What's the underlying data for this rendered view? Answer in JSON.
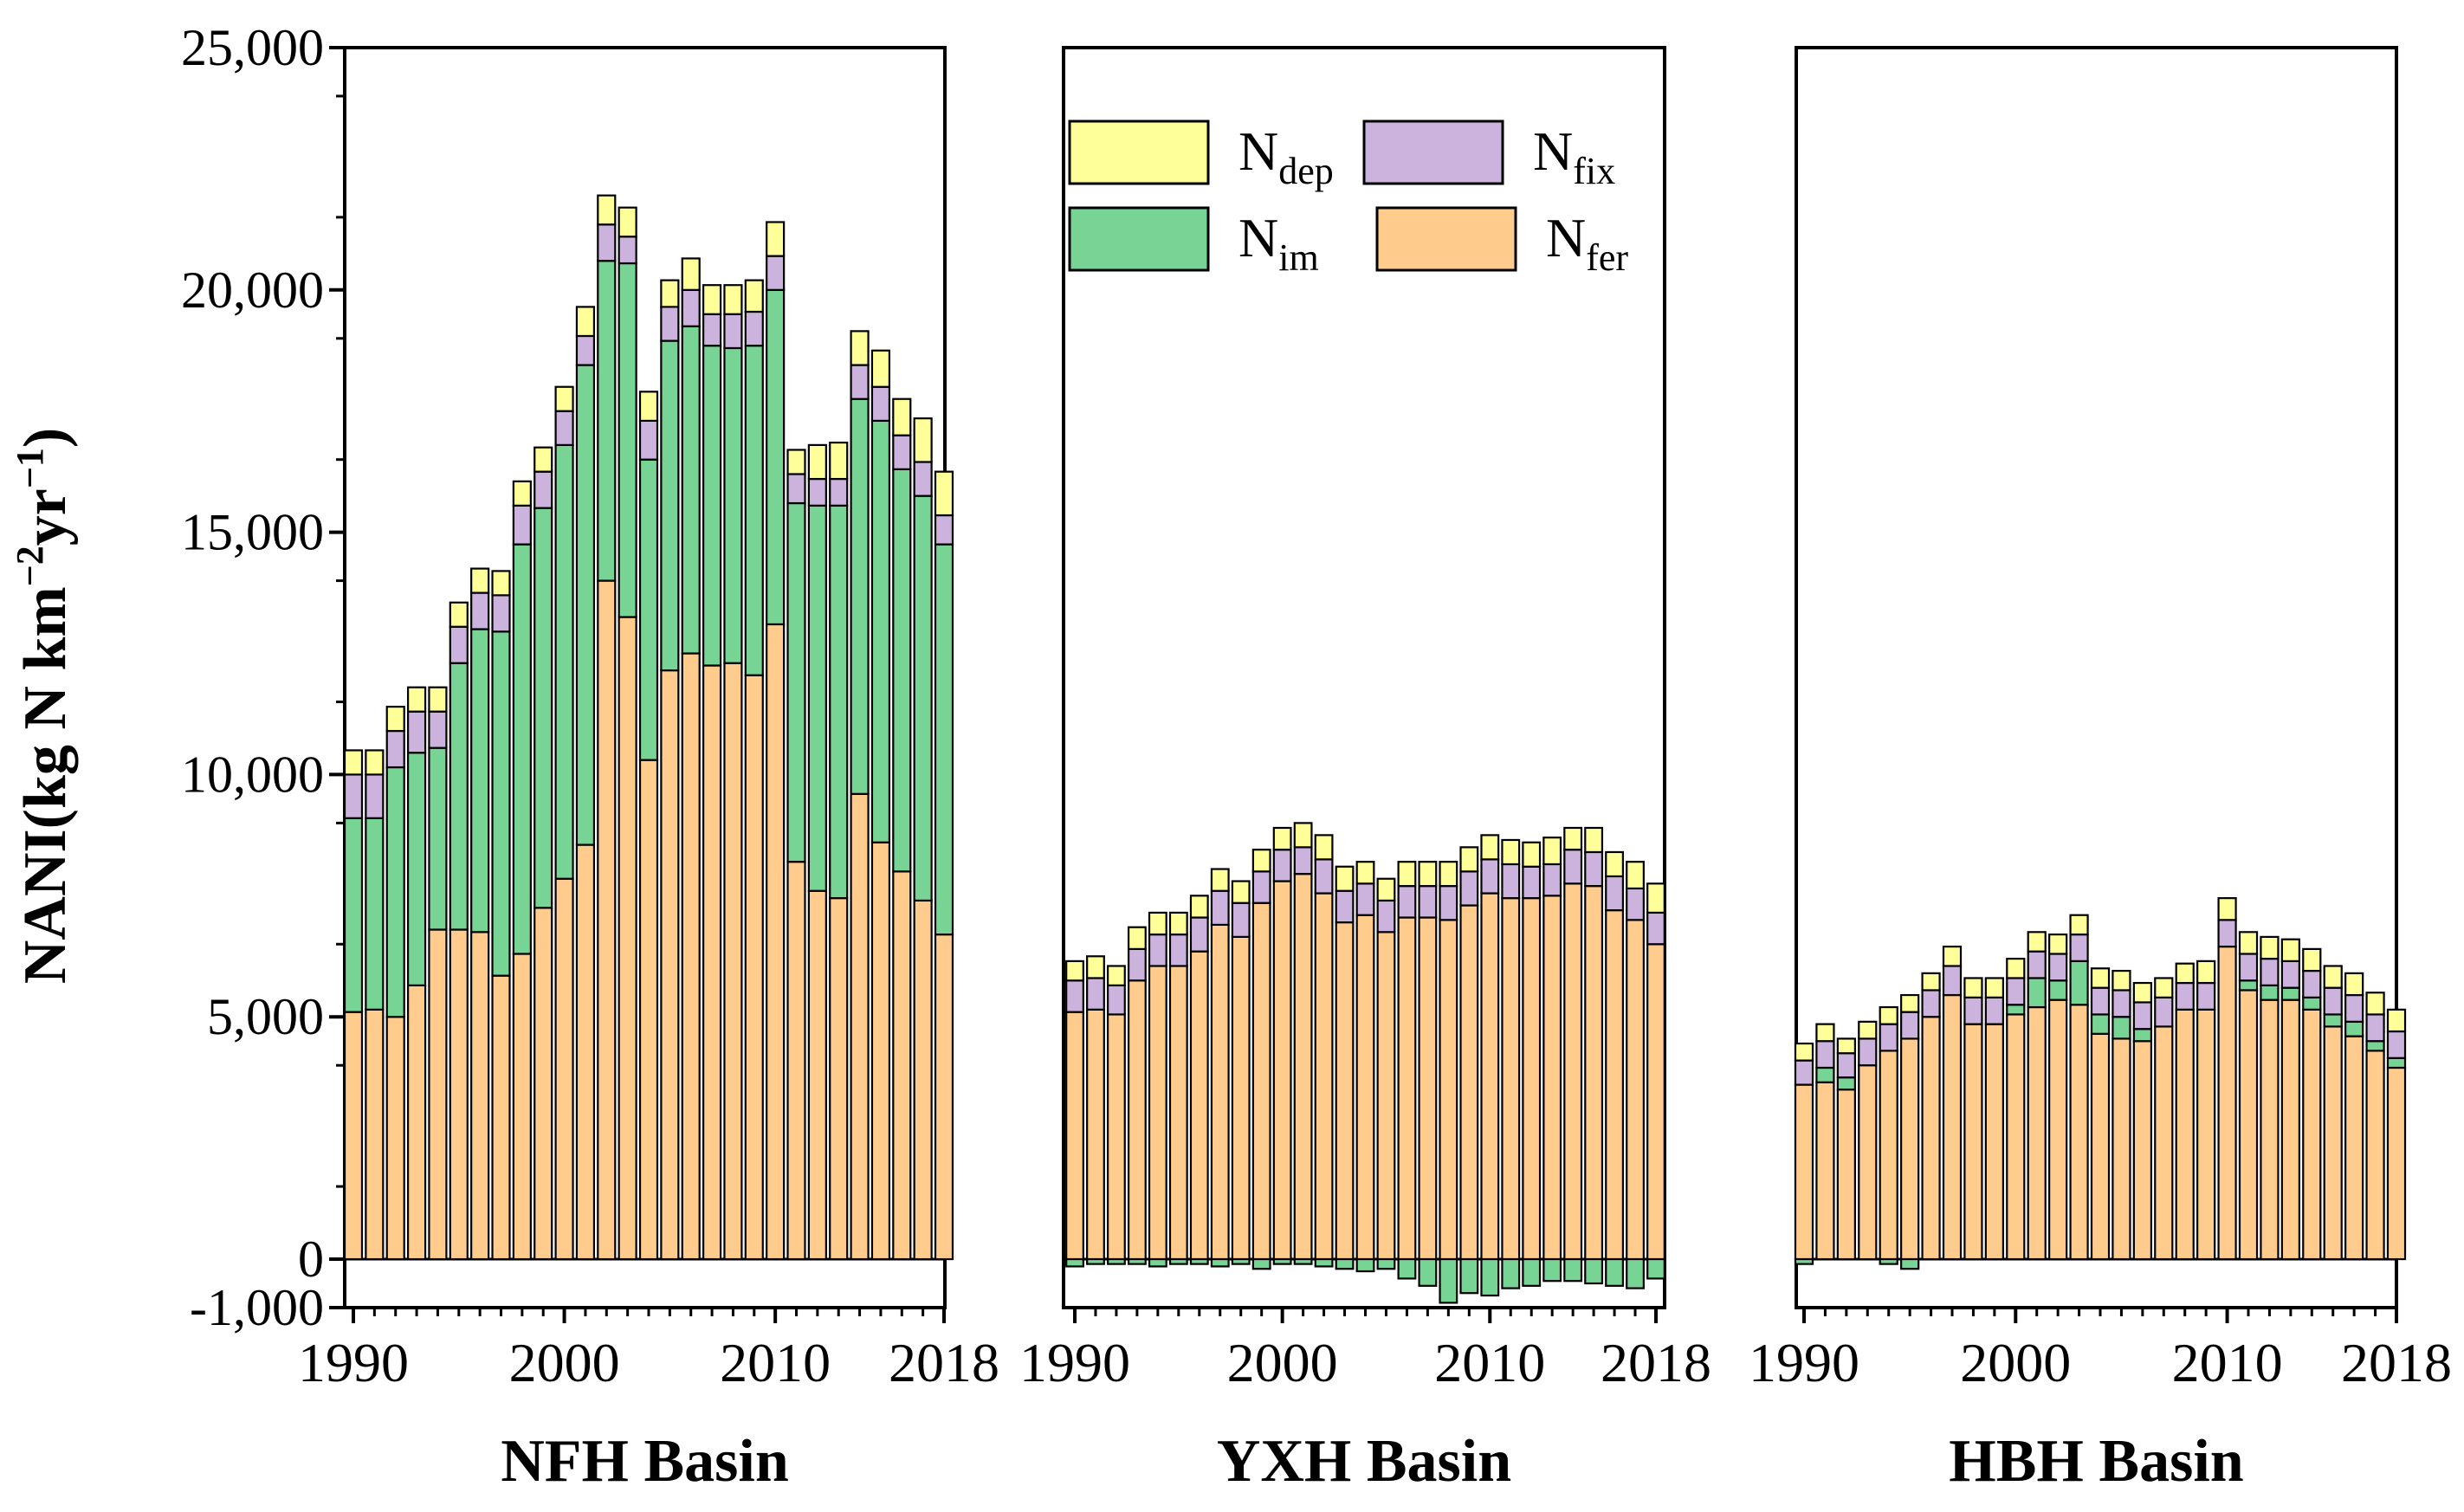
{
  "chart_data": {
    "type": "bar",
    "stacked": true,
    "ylabel": "NANI(kg N km⁻²yr⁻¹)",
    "ylabel_parts": {
      "base": "NANI(kg N km",
      "exp1": "−2",
      "mid": "yr",
      "exp2": "−1",
      "end": ")"
    },
    "ylim": [
      -1000,
      25000
    ],
    "yticks": [
      {
        "value": 25000,
        "label": "25,000"
      },
      {
        "value": 20000,
        "label": "20,000"
      },
      {
        "value": 15000,
        "label": "15,000"
      },
      {
        "value": 10000,
        "label": "10,000"
      },
      {
        "value": 5000,
        "label": "5,000"
      },
      {
        "value": 0,
        "label": "0"
      },
      {
        "value": -1000,
        "label": "-1,000"
      }
    ],
    "xticks": [
      {
        "value": 1990,
        "label": "1990"
      },
      {
        "value": 2000,
        "label": "2000"
      },
      {
        "value": 2010,
        "label": "2010"
      },
      {
        "value": 2018,
        "label": "2018"
      }
    ],
    "legend": [
      {
        "key": "dep",
        "base": "N",
        "sub": "dep",
        "color": "#ffff99"
      },
      {
        "key": "fix",
        "base": "N",
        "sub": "fix",
        "color": "#ccb3dd"
      },
      {
        "key": "im",
        "base": "N",
        "sub": "im",
        "color": "#77d494"
      },
      {
        "key": "fer",
        "base": "N",
        "sub": "fer",
        "color": "#ffcc8d"
      }
    ],
    "series_order": [
      "fer",
      "im",
      "fix",
      "dep"
    ],
    "panels": [
      {
        "title": "NFH Basin",
        "years": [
          1990,
          1991,
          1992,
          1993,
          1994,
          1995,
          1996,
          1997,
          1998,
          1999,
          2000,
          2001,
          2002,
          2003,
          2004,
          2005,
          2006,
          2007,
          2008,
          2009,
          2010,
          2011,
          2012,
          2013,
          2014,
          2015,
          2016,
          2017,
          2018
        ],
        "series": {
          "fer": [
            5100,
            5150,
            5000,
            5650,
            6800,
            6800,
            6750,
            5850,
            6300,
            7250,
            7850,
            8550,
            14000,
            13250,
            10300,
            12150,
            12500,
            12250,
            12300,
            12050,
            13100,
            8200,
            7600,
            7450,
            9600,
            8600,
            8000,
            7400,
            6700
          ],
          "im": [
            4000,
            3950,
            5150,
            4800,
            3750,
            5500,
            6250,
            7100,
            8450,
            8250,
            8950,
            9900,
            6600,
            7300,
            6200,
            6800,
            6750,
            6600,
            6500,
            6800,
            6900,
            7400,
            7950,
            8100,
            8150,
            8700,
            8300,
            8350,
            8050
          ],
          "fix": [
            900,
            900,
            750,
            850,
            750,
            750,
            750,
            750,
            800,
            750,
            700,
            600,
            750,
            550,
            800,
            700,
            750,
            650,
            700,
            700,
            700,
            600,
            550,
            550,
            700,
            700,
            700,
            700,
            600
          ],
          "dep": [
            500,
            500,
            500,
            500,
            500,
            500,
            500,
            500,
            500,
            500,
            500,
            600,
            600,
            600,
            600,
            550,
            650,
            600,
            600,
            650,
            700,
            500,
            700,
            750,
            700,
            750,
            750,
            900,
            900
          ]
        }
      },
      {
        "title": "YXH Basin",
        "years": [
          1990,
          1991,
          1992,
          1993,
          1994,
          1995,
          1996,
          1997,
          1998,
          1999,
          2000,
          2001,
          2002,
          2003,
          2004,
          2005,
          2006,
          2007,
          2008,
          2009,
          2010,
          2011,
          2012,
          2013,
          2014,
          2015,
          2016,
          2017,
          2018
        ],
        "series": {
          "fer": [
            5100,
            5150,
            5050,
            5750,
            6050,
            6050,
            6350,
            6900,
            6650,
            7350,
            7800,
            7950,
            7550,
            6950,
            7100,
            6750,
            7050,
            7050,
            7000,
            7300,
            7550,
            7450,
            7450,
            7500,
            7750,
            7700,
            7200,
            7000,
            6500
          ],
          "im": [
            -150,
            -100,
            -100,
            -100,
            -150,
            -100,
            -100,
            -150,
            -100,
            -200,
            -100,
            -100,
            -150,
            -200,
            -250,
            -200,
            -400,
            -550,
            -900,
            -700,
            -750,
            -600,
            -550,
            -450,
            -450,
            -500,
            -550,
            -600,
            -400
          ],
          "fix": [
            650,
            650,
            600,
            650,
            650,
            650,
            700,
            700,
            700,
            650,
            650,
            550,
            700,
            650,
            650,
            650,
            650,
            650,
            700,
            700,
            700,
            700,
            650,
            650,
            700,
            700,
            700,
            650,
            650
          ],
          "dep": [
            400,
            450,
            400,
            450,
            450,
            450,
            450,
            450,
            450,
            450,
            450,
            500,
            500,
            500,
            450,
            450,
            500,
            500,
            500,
            500,
            500,
            500,
            500,
            550,
            450,
            500,
            500,
            550,
            600
          ]
        }
      },
      {
        "title": "HBH Basin",
        "years": [
          1990,
          1991,
          1992,
          1993,
          1994,
          1995,
          1996,
          1997,
          1998,
          1999,
          2000,
          2001,
          2002,
          2003,
          2004,
          2005,
          2006,
          2007,
          2008,
          2009,
          2010,
          2011,
          2012,
          2013,
          2014,
          2015,
          2016,
          2017,
          2018
        ],
        "series": {
          "fer": [
            3600,
            3650,
            3500,
            4000,
            4300,
            4550,
            5000,
            5450,
            4850,
            4850,
            5050,
            5200,
            5350,
            5250,
            4650,
            4550,
            4500,
            4800,
            5150,
            5150,
            6450,
            5550,
            5350,
            5350,
            5150,
            4800,
            4600,
            4300,
            3950
          ],
          "im": [
            -100,
            300,
            250,
            0,
            -100,
            -200,
            0,
            0,
            0,
            0,
            200,
            600,
            400,
            900,
            400,
            450,
            250,
            0,
            0,
            0,
            0,
            200,
            300,
            250,
            250,
            250,
            300,
            200,
            200
          ],
          "fix": [
            500,
            550,
            500,
            550,
            550,
            550,
            550,
            600,
            550,
            550,
            550,
            550,
            550,
            550,
            550,
            550,
            550,
            600,
            550,
            550,
            550,
            550,
            550,
            550,
            550,
            550,
            550,
            550,
            550
          ],
          "dep": [
            350,
            350,
            300,
            350,
            350,
            350,
            350,
            400,
            400,
            400,
            400,
            400,
            400,
            400,
            400,
            400,
            400,
            400,
            400,
            450,
            450,
            450,
            450,
            450,
            450,
            450,
            450,
            450,
            450
          ]
        }
      }
    ]
  }
}
